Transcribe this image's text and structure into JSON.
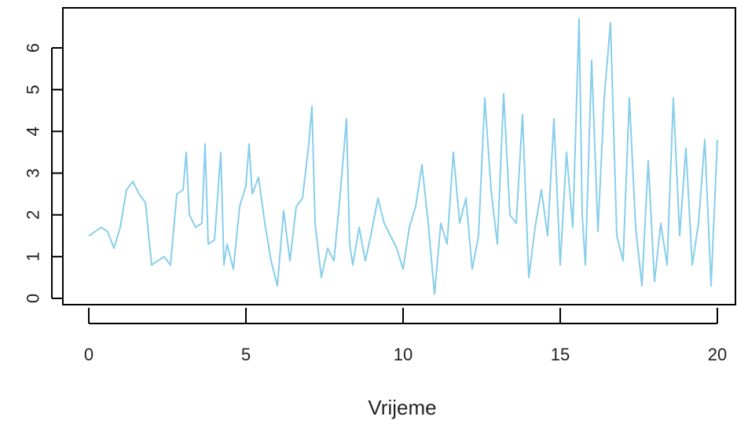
{
  "chart_data": {
    "type": "line",
    "title": "",
    "xlabel": "Vrijeme",
    "ylabel": "",
    "xlim": [
      0,
      20
    ],
    "ylim": [
      0,
      6.5
    ],
    "x_ticks": [
      0,
      5,
      10,
      15,
      20
    ],
    "y_ticks": [
      0,
      1,
      2,
      3,
      4,
      5,
      6
    ],
    "grid": false,
    "line_color": "#87CEEB",
    "axis_color": "#000000",
    "series": [
      {
        "x": [
          0.0,
          0.2,
          0.4,
          0.6,
          0.8,
          1.0,
          1.2,
          1.4,
          1.6,
          1.8,
          2.0,
          2.2,
          2.4,
          2.6,
          2.8,
          3.0,
          3.1,
          3.2,
          3.4,
          3.6,
          3.7,
          3.8,
          4.0,
          4.2,
          4.3,
          4.4,
          4.6,
          4.8,
          5.0,
          5.1,
          5.2,
          5.4,
          5.6,
          5.8,
          6.0,
          6.2,
          6.4,
          6.6,
          6.8,
          7.0,
          7.1,
          7.2,
          7.4,
          7.6,
          7.8,
          8.0,
          8.2,
          8.3,
          8.4,
          8.6,
          8.8,
          9.0,
          9.2,
          9.4,
          9.6,
          9.8,
          10.0,
          10.2,
          10.4,
          10.6,
          10.8,
          11.0,
          11.2,
          11.4,
          11.6,
          11.8,
          12.0,
          12.2,
          12.4,
          12.6,
          12.8,
          13.0,
          13.2,
          13.4,
          13.6,
          13.8,
          14.0,
          14.2,
          14.4,
          14.6,
          14.8,
          15.0,
          15.2,
          15.4,
          15.6,
          15.7,
          15.8,
          16.0,
          16.2,
          16.4,
          16.6,
          16.8,
          17.0,
          17.2,
          17.4,
          17.6,
          17.8,
          18.0,
          18.2,
          18.4,
          18.6,
          18.8,
          19.0,
          19.2,
          19.4,
          19.6,
          19.8,
          20.0
        ],
        "y": [
          1.5,
          1.6,
          1.7,
          1.6,
          1.2,
          1.7,
          2.6,
          2.8,
          2.5,
          2.3,
          0.8,
          0.9,
          1.0,
          0.8,
          2.5,
          2.6,
          3.5,
          2.0,
          1.7,
          1.8,
          3.7,
          1.3,
          1.4,
          3.5,
          0.8,
          1.3,
          0.7,
          2.2,
          2.7,
          3.7,
          2.5,
          2.9,
          1.8,
          0.9,
          0.3,
          2.1,
          0.9,
          2.2,
          2.4,
          3.7,
          4.6,
          1.8,
          0.5,
          1.2,
          0.9,
          2.5,
          4.3,
          1.3,
          0.8,
          1.7,
          0.9,
          1.6,
          2.4,
          1.8,
          1.5,
          1.2,
          0.7,
          1.7,
          2.2,
          3.2,
          1.8,
          0.1,
          1.8,
          1.3,
          3.5,
          1.8,
          2.4,
          0.7,
          1.5,
          4.8,
          2.6,
          1.3,
          4.9,
          2.0,
          1.8,
          4.4,
          0.5,
          1.7,
          2.6,
          1.5,
          4.3,
          0.8,
          3.5,
          1.7,
          6.7,
          2.0,
          0.8,
          5.7,
          1.6,
          4.8,
          6.6,
          1.5,
          0.9,
          4.8,
          1.7,
          0.3,
          3.3,
          0.4,
          1.8,
          0.8,
          4.8,
          1.5,
          3.6,
          0.8,
          1.8,
          3.8,
          0.3,
          3.8
        ]
      }
    ]
  }
}
